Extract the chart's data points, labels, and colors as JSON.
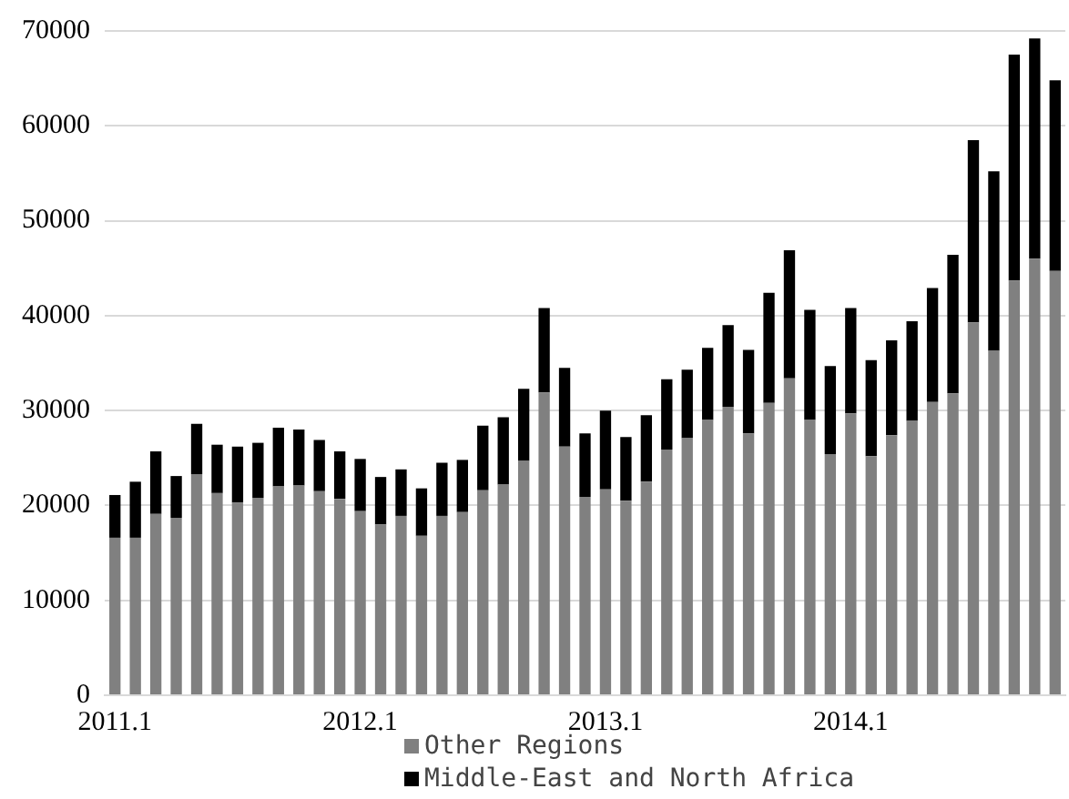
{
  "chart_data": {
    "type": "bar",
    "stacked": true,
    "categories": [
      "2011.1",
      null,
      null,
      null,
      null,
      null,
      null,
      null,
      null,
      null,
      null,
      null,
      "2012.1",
      null,
      null,
      null,
      null,
      null,
      null,
      null,
      null,
      null,
      null,
      null,
      "2013.1",
      null,
      null,
      null,
      null,
      null,
      null,
      null,
      null,
      null,
      null,
      null,
      "2014.1",
      null,
      null,
      null,
      null,
      null,
      null,
      null,
      null,
      null,
      null
    ],
    "series": [
      {
        "name": "Other Regions",
        "color": "#808080",
        "values": [
          16600,
          16600,
          19100,
          18700,
          23300,
          21300,
          20300,
          20800,
          22000,
          22100,
          21500,
          20700,
          19400,
          18000,
          18900,
          16800,
          18900,
          19300,
          21600,
          22200,
          24700,
          31900,
          26200,
          20900,
          21700,
          20500,
          22500,
          25900,
          27100,
          29000,
          30400,
          27600,
          30800,
          33400,
          29000,
          25400,
          29700,
          25200,
          27400,
          28900,
          30900,
          31800,
          39300,
          36300,
          43700,
          46000,
          44700
        ]
      },
      {
        "name": "Middle-East and North Africa",
        "color": "#000000",
        "values": [
          4500,
          5900,
          6600,
          4400,
          5300,
          5100,
          5900,
          5800,
          6200,
          5900,
          5400,
          5000,
          5500,
          5000,
          4900,
          5000,
          5600,
          5500,
          6800,
          7100,
          7600,
          8900,
          8300,
          6700,
          8300,
          6700,
          7000,
          7400,
          7200,
          7600,
          8600,
          8800,
          11600,
          13500,
          11600,
          9300,
          11100,
          10100,
          10000,
          10500,
          12000,
          14600,
          19200,
          18900,
          23800,
          23200,
          20100
        ]
      }
    ],
    "ylim": [
      0,
      70000
    ],
    "yticks": [
      0,
      10000,
      20000,
      30000,
      40000,
      50000,
      60000,
      70000
    ],
    "grid": "y",
    "legend": "bottom"
  }
}
